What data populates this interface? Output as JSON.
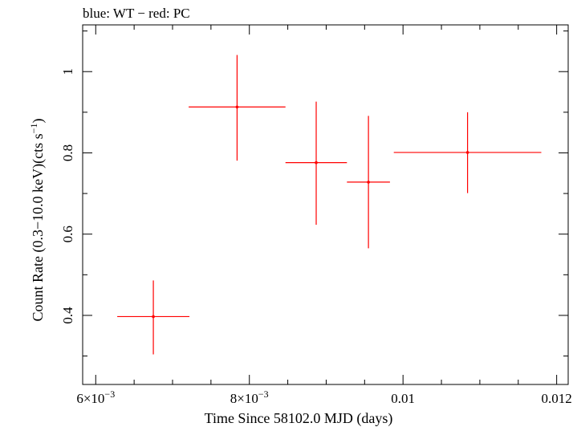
{
  "chart_data": {
    "type": "scatter",
    "title": "blue: WT − red: PC",
    "xlabel": "Time Since 58102.0 MJD (days)",
    "ylabel": {
      "prefix": "Count Rate (0.3−10.0 keV)(cts s",
      "superscript": "−1",
      "suffix": ")"
    },
    "xlim": [
      0.00583,
      0.01215
    ],
    "ylim": [
      0.23,
      1.115
    ],
    "x_ticks": [
      {
        "value": 0.006,
        "label_mantissa": "6×10",
        "label_exp": "−3"
      },
      {
        "value": 0.008,
        "label_mantissa": "8×10",
        "label_exp": "−3"
      },
      {
        "value": 0.01,
        "label": "0.01"
      },
      {
        "value": 0.012,
        "label": "0.012"
      }
    ],
    "x_minor_step": 0.0005,
    "y_ticks": [
      {
        "value": 0.4,
        "label": "0.4"
      },
      {
        "value": 0.6,
        "label": "0.6"
      },
      {
        "value": 0.8,
        "label": "0.8"
      },
      {
        "value": 1.0,
        "label": "1"
      }
    ],
    "y_minor_step": 0.1,
    "series": [
      {
        "color": "#ff0000",
        "points": [
          {
            "x": 0.00675,
            "xerr_low": 0.00047,
            "xerr_high": 0.00047,
            "y": 0.397,
            "yerr_low": 0.093,
            "yerr_high": 0.089
          },
          {
            "x": 0.00784,
            "xerr_low": 0.00063,
            "xerr_high": 0.00063,
            "y": 0.913,
            "yerr_low": 0.132,
            "yerr_high": 0.128
          },
          {
            "x": 0.00887,
            "xerr_low": 0.0004,
            "xerr_high": 0.0004,
            "y": 0.776,
            "yerr_low": 0.153,
            "yerr_high": 0.15
          },
          {
            "x": 0.00955,
            "xerr_low": 0.00028,
            "xerr_high": 0.00028,
            "y": 0.728,
            "yerr_low": 0.163,
            "yerr_high": 0.163
          },
          {
            "x": 0.01084,
            "xerr_low": 0.00096,
            "xerr_high": 0.00096,
            "y": 0.801,
            "yerr_low": 0.1,
            "yerr_high": 0.099
          }
        ]
      }
    ]
  }
}
